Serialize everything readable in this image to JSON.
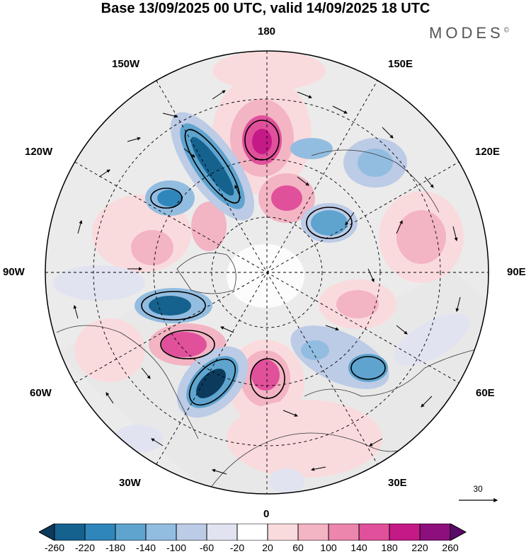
{
  "title": "Base 13/09/2025 00 UTC, valid 14/09/2025 18 UTC",
  "brand": "MODES",
  "brand_mark": "©",
  "longitude_labels": {
    "top": "180",
    "bottom": "0",
    "left": "90W",
    "right": "90E",
    "upper_left_1": "150W",
    "upper_left_2": "120W",
    "upper_right_1": "150E",
    "upper_right_2": "120E",
    "lower_left_1": "60W",
    "lower_left_2": "30W",
    "lower_right_1": "60E",
    "lower_right_2": "30E"
  },
  "reference_vector": {
    "label": "30"
  },
  "colorbar": {
    "ticks": [
      "-260",
      "-220",
      "-180",
      "-140",
      "-100",
      "-60",
      "-20",
      "20",
      "60",
      "100",
      "140",
      "180",
      "220",
      "260"
    ],
    "colors": [
      "#0b3a5c",
      "#16628f",
      "#2f86bb",
      "#5ea4cf",
      "#93bde0",
      "#bccbe6",
      "#e2e3f1",
      "#ffffff",
      "#fadbdd",
      "#f3b4c3",
      "#ec86ac",
      "#e0509b",
      "#c41a87",
      "#8c0f7d",
      "#5a0a6b"
    ]
  }
}
